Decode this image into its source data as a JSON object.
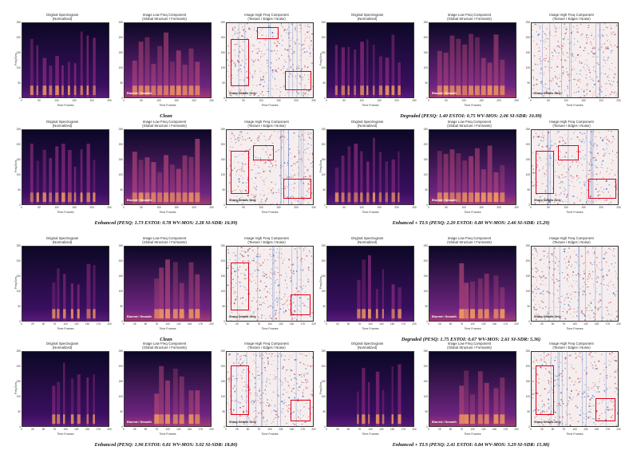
{
  "panel_titles": {
    "original": [
      "Original Spectrogram",
      "(Normalized)"
    ],
    "low": [
      "Image Low Freq Component",
      "(Global Structure / Formants)"
    ],
    "high": [
      "Image High Freq Component",
      "(Texture / Edges / Noise)"
    ]
  },
  "axes": {
    "ylabel": "Freq Bins",
    "xlabel": "Time Frames",
    "yticks": [
      "0",
      "50",
      "100",
      "150",
      "200",
      "250"
    ],
    "xticks_a": [
      "0",
      "50",
      "100",
      "150",
      "200",
      "250"
    ],
    "xticks_b": [
      "0",
      "25",
      "50",
      "75",
      "100",
      "125",
      "150",
      "175",
      "200"
    ]
  },
  "overlay_labels": {
    "blurred": "Blurred / Smooth",
    "sharp": "Sharp Details Only"
  },
  "colors": {
    "box": "#e0001a",
    "magma_dark": "#0c0826",
    "magma_mid": "#7b2382",
    "magma_bright": "#f8a15c",
    "rdbu_red": "#c0282c",
    "rdbu_blue": "#2c58b4"
  },
  "figures": [
    {
      "caption": "Clean",
      "ticks": "a",
      "boxes": [
        [
          0.05,
          0.22,
          0.26,
          0.85
        ],
        [
          0.35,
          0.05,
          0.6,
          0.22
        ],
        [
          0.68,
          0.65,
          0.98,
          0.9
        ]
      ]
    },
    {
      "caption": "Degraded (PESQ: 1.40  ESTOI: 0.75  WV-MOS: 2.06  SI-SDR: 10.99)",
      "ticks": "a",
      "boxes": []
    },
    {
      "caption": "Enhanced (PESQ: 1.73  ESTOI: 0.78  WV-MOS: 2.28  SI-SDR: 16.99)",
      "ticks": "a",
      "boxes": [
        [
          0.05,
          0.28,
          0.26,
          0.86
        ],
        [
          0.31,
          0.2,
          0.55,
          0.41
        ],
        [
          0.66,
          0.66,
          0.98,
          0.93
        ]
      ]
    },
    {
      "caption": "Enhanced + TLS (PESQ: 2.20  ESTOI: 0.80  WV-MOS: 2.46  SI-SDR: 15.29)",
      "ticks": "a",
      "boxes": [
        [
          0.05,
          0.28,
          0.26,
          0.86
        ],
        [
          0.31,
          0.2,
          0.55,
          0.41
        ],
        [
          0.66,
          0.66,
          0.98,
          0.93
        ]
      ]
    },
    {
      "caption": "Clean",
      "ticks": "b",
      "boxes": [
        [
          0.05,
          0.22,
          0.26,
          0.86
        ],
        [
          0.74,
          0.64,
          0.97,
          0.92
        ]
      ]
    },
    {
      "caption": "Degraded (PESQ: 1.75  ESTOI: 0.67  WV-MOS: 2.61  SI-SDR: 5.36)",
      "ticks": "b",
      "boxes": []
    },
    {
      "caption": "Enhanced (PESQ: 1.96  ESTOI: 0.81  WV-MOS: 3.02  SI-SDR: 18.80)",
      "ticks": "b",
      "boxes": [
        [
          0.05,
          0.18,
          0.26,
          0.85
        ],
        [
          0.74,
          0.64,
          0.97,
          0.94
        ]
      ]
    },
    {
      "caption": "Enhanced + TLS (PESQ: 2.41  ESTOI: 0.84  WV-MOS: 3.29  SI-SDR: 15.98)",
      "ticks": "b",
      "boxes": [
        [
          0.05,
          0.18,
          0.26,
          0.85
        ],
        [
          0.74,
          0.62,
          0.97,
          0.94
        ]
      ]
    }
  ]
}
